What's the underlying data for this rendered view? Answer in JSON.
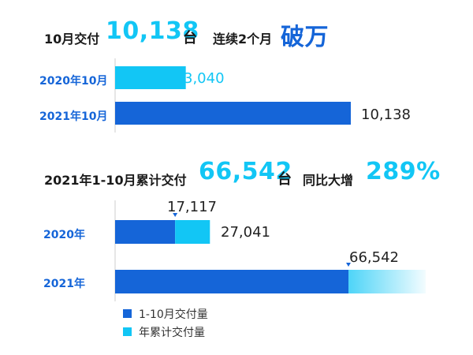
{
  "headline1": {
    "prefix": "10月交付",
    "number": "10,138",
    "unit": "台",
    "suffix_a": "连续2个月",
    "suffix_b": "破万"
  },
  "headline2": {
    "prefix": "2021年1-10月累计交付",
    "number": "66,542",
    "unit": "台",
    "mid": "同比大增",
    "pct": "289%"
  },
  "legend": {
    "item1": "1-10月交付量",
    "item2": "年累计交付量"
  },
  "colors": {
    "blue": "#1565d8",
    "cyan": "#12c6f5"
  },
  "chart_data": [
    {
      "type": "bar",
      "orientation": "horizontal",
      "categories": [
        "2020年10月",
        "2021年10月"
      ],
      "series": [
        {
          "values": [
            3040,
            10138
          ]
        }
      ],
      "data_labels": [
        "3,040",
        "10,138"
      ]
    },
    {
      "type": "bar",
      "orientation": "horizontal",
      "stacked": true,
      "categories": [
        "2020年",
        "2021年"
      ],
      "series": [
        {
          "name": "1-10月交付量",
          "values": [
            17117,
            66542
          ]
        },
        {
          "name": "年累计交付量",
          "values": [
            27041,
            null
          ]
        }
      ],
      "data_labels": {
        "2020年": [
          "17,117",
          "27,041"
        ],
        "2021年": [
          "66,542"
        ]
      }
    }
  ]
}
